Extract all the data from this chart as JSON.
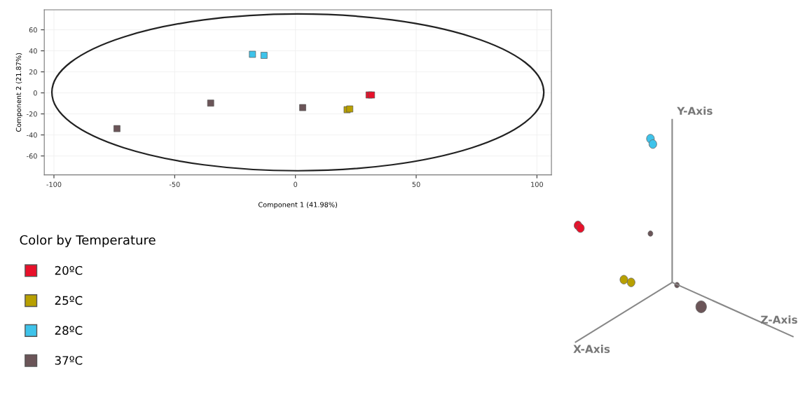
{
  "chart_data": [
    {
      "type": "scatter",
      "xlabel": "Component 1 (41.98%)",
      "ylabel": "Component 2 (21.87%)",
      "legend_title": "Color by Temperature",
      "xlim": [
        -104,
        106
      ],
      "ylim": [
        -78,
        79
      ],
      "xticks": [
        -100,
        -50,
        0,
        50,
        100
      ],
      "yticks": [
        -60,
        -40,
        -20,
        0,
        20,
        40,
        60
      ],
      "grid": true,
      "legend": "bottom left",
      "marker": "square",
      "series": [
        {
          "name": "20ºC",
          "color": "#e8102a",
          "x": [
            30.5,
            31.5
          ],
          "values": [
            -2,
            -2
          ]
        },
        {
          "name": "25ºC",
          "color": "#b8a000",
          "x": [
            21.4,
            22.5
          ],
          "values": [
            -16,
            -15.3
          ]
        },
        {
          "name": "28ºC",
          "color": "#3ec3ea",
          "x": [
            -17.8,
            -13.0
          ],
          "values": [
            36.7,
            35.7
          ]
        },
        {
          "name": "37ºC",
          "color": "#6b5558",
          "x": [
            -35.1,
            3.0,
            -73.9
          ],
          "values": [
            -9.7,
            -14,
            -34
          ]
        }
      ]
    },
    {
      "type": "other",
      "annotations": [
        "X-Axis",
        "Y-Axis",
        "Z-Axis"
      ]
    }
  ]
}
